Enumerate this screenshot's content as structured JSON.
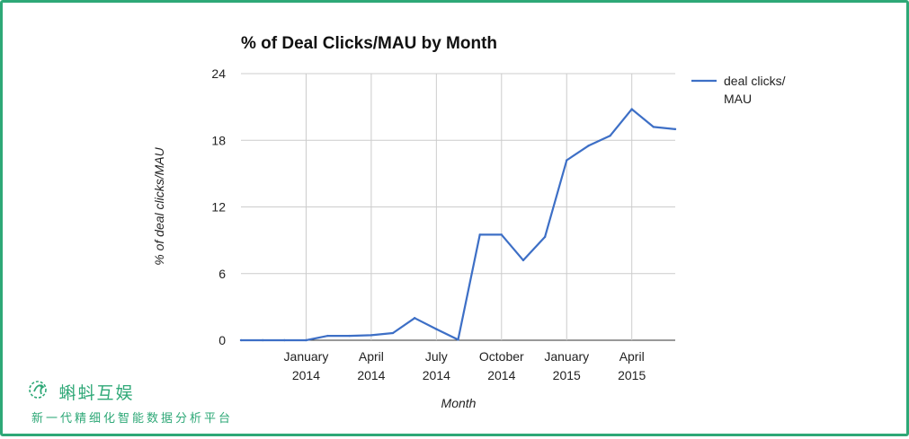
{
  "chart_data": {
    "type": "line",
    "title": "% of Deal Clicks/MAU by Month",
    "xlabel": "Month",
    "ylabel": "% of deal clicks/MAU",
    "ylim": [
      0,
      24
    ],
    "yticks": [
      0,
      6,
      12,
      18,
      24
    ],
    "xticks": [
      {
        "line1": "January",
        "line2": "2014",
        "month": "2014-01"
      },
      {
        "line1": "April",
        "line2": "2014",
        "month": "2014-04"
      },
      {
        "line1": "July",
        "line2": "2014",
        "month": "2014-07"
      },
      {
        "line1": "October",
        "line2": "2014",
        "month": "2014-10"
      },
      {
        "line1": "January",
        "line2": "2015",
        "month": "2015-01"
      },
      {
        "line1": "April",
        "line2": "2015",
        "month": "2015-04"
      }
    ],
    "grid": true,
    "legend_position": "right",
    "series": [
      {
        "name": "deal clicks/ MAU",
        "color": "#3d6fc6",
        "x": [
          "2013-10",
          "2013-11",
          "2013-12",
          "2014-01",
          "2014-02",
          "2014-03",
          "2014-04",
          "2014-05",
          "2014-06",
          "2014-07",
          "2014-08",
          "2014-09",
          "2014-10",
          "2014-11",
          "2014-12",
          "2015-01",
          "2015-02",
          "2015-03",
          "2015-04",
          "2015-05",
          "2015-06"
        ],
        "values": [
          0,
          0,
          0,
          0,
          0.4,
          0.4,
          0.45,
          0.65,
          2.0,
          1.0,
          0.05,
          9.5,
          9.5,
          7.2,
          9.3,
          16.2,
          17.5,
          18.4,
          20.8,
          19.2,
          19.0
        ]
      }
    ]
  },
  "watermark": {
    "name": "蝌蚪互娱",
    "slogan": "新一代精细化智能数据分析平台",
    "color": "#2ea877"
  }
}
